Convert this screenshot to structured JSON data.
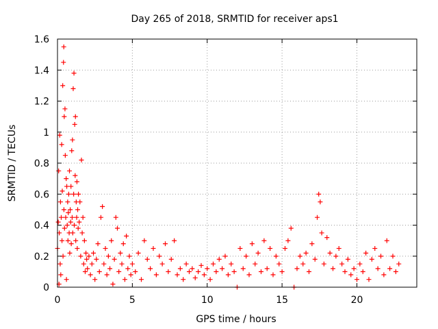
{
  "chart_data": {
    "type": "scatter",
    "title": "Day 265 of 2018, SRMTID for receiver aps1",
    "xlabel": "GPS time / hours",
    "ylabel": "SRMTID / TECUs",
    "xlim": [
      0,
      24
    ],
    "ylim": [
      0,
      1.6
    ],
    "x_ticks": [
      0,
      5,
      10,
      15,
      20
    ],
    "y_ticks": [
      0,
      0.2,
      0.4,
      0.6,
      0.8,
      1,
      1.2,
      1.4,
      1.6
    ],
    "x_tick_labels": [
      "0",
      "5",
      "10",
      "15",
      "20"
    ],
    "y_tick_labels": [
      "0",
      "0.2",
      "0.4",
      "0.6",
      "0.8",
      "1",
      "1.2",
      "1.4",
      "1.6"
    ],
    "grid": true,
    "marker": "+",
    "color": "#ff0000",
    "series": [
      {
        "name": "SRMTID",
        "points": [
          [
            0.0,
            0.25
          ],
          [
            0.05,
            0.42
          ],
          [
            0.08,
            0.75
          ],
          [
            0.1,
            0.02
          ],
          [
            0.12,
            0.35
          ],
          [
            0.15,
            0.98
          ],
          [
            0.18,
            0.15
          ],
          [
            0.2,
            0.55
          ],
          [
            0.22,
            0.08
          ],
          [
            0.25,
            0.45
          ],
          [
            0.28,
            0.92
          ],
          [
            0.3,
            0.3
          ],
          [
            0.32,
            0.62
          ],
          [
            0.35,
            1.3
          ],
          [
            0.37,
            0.2
          ],
          [
            0.4,
            1.45
          ],
          [
            0.42,
            1.55
          ],
          [
            0.43,
            0.5
          ],
          [
            0.45,
            1.1
          ],
          [
            0.47,
            0.38
          ],
          [
            0.5,
            1.15
          ],
          [
            0.52,
            0.85
          ],
          [
            0.55,
            0.45
          ],
          [
            0.58,
            0.7
          ],
          [
            0.6,
            0.05
          ],
          [
            0.62,
            0.65
          ],
          [
            0.65,
            0.4
          ],
          [
            0.68,
            0.55
          ],
          [
            0.7,
            0.3
          ],
          [
            0.72,
            0.48
          ],
          [
            0.75,
            0.6
          ],
          [
            0.78,
            0.35
          ],
          [
            0.8,
            0.75
          ],
          [
            0.82,
            0.22
          ],
          [
            0.85,
            0.5
          ],
          [
            0.88,
            0.42
          ],
          [
            0.9,
            0.65
          ],
          [
            0.92,
            0.28
          ],
          [
            0.95,
            0.88
          ],
          [
            0.98,
            0.45
          ],
          [
            1.0,
            0.95
          ],
          [
            1.02,
            0.35
          ],
          [
            1.05,
            1.28
          ],
          [
            1.08,
            0.6
          ],
          [
            1.1,
            1.38
          ],
          [
            1.12,
            0.4
          ],
          [
            1.15,
            1.05
          ],
          [
            1.18,
            0.72
          ],
          [
            1.2,
            1.1
          ],
          [
            1.22,
            0.3
          ],
          [
            1.25,
            0.55
          ],
          [
            1.28,
            0.45
          ],
          [
            1.3,
            0.68
          ],
          [
            1.32,
            0.25
          ],
          [
            1.35,
            0.5
          ],
          [
            1.38,
            0.38
          ],
          [
            1.4,
            0.6
          ],
          [
            1.45,
            0.42
          ],
          [
            1.5,
            0.55
          ],
          [
            1.55,
            0.2
          ],
          [
            1.6,
            0.82
          ],
          [
            1.65,
            0.35
          ],
          [
            1.7,
            0.45
          ],
          [
            1.75,
            0.15
          ],
          [
            1.8,
            0.3
          ],
          [
            1.85,
            0.1
          ],
          [
            1.9,
            0.22
          ],
          [
            1.95,
            0.18
          ],
          [
            2.0,
            0.12
          ],
          [
            2.1,
            0.2
          ],
          [
            2.2,
            0.08
          ],
          [
            2.3,
            0.15
          ],
          [
            2.4,
            0.22
          ],
          [
            2.5,
            0.05
          ],
          [
            2.6,
            0.18
          ],
          [
            2.7,
            0.28
          ],
          [
            2.8,
            0.1
          ],
          [
            2.9,
            0.45
          ],
          [
            3.0,
            0.52
          ],
          [
            3.1,
            0.15
          ],
          [
            3.2,
            0.25
          ],
          [
            3.3,
            0.08
          ],
          [
            3.4,
            0.2
          ],
          [
            3.5,
            0.12
          ],
          [
            3.6,
            0.3
          ],
          [
            3.7,
            0.02
          ],
          [
            3.8,
            0.18
          ],
          [
            3.9,
            0.45
          ],
          [
            4.0,
            0.38
          ],
          [
            4.1,
            0.1
          ],
          [
            4.2,
            0.22
          ],
          [
            4.3,
            0.15
          ],
          [
            4.4,
            0.28
          ],
          [
            4.5,
            0.05
          ],
          [
            4.6,
            0.33
          ],
          [
            4.7,
            0.12
          ],
          [
            4.8,
            0.2
          ],
          [
            4.9,
            0.08
          ],
          [
            5.0,
            0.15
          ],
          [
            5.2,
            0.1
          ],
          [
            5.4,
            0.22
          ],
          [
            5.6,
            0.05
          ],
          [
            5.8,
            0.3
          ],
          [
            6.0,
            0.18
          ],
          [
            6.2,
            0.12
          ],
          [
            6.4,
            0.25
          ],
          [
            6.6,
            0.08
          ],
          [
            6.8,
            0.2
          ],
          [
            7.0,
            0.15
          ],
          [
            7.2,
            0.28
          ],
          [
            7.4,
            0.1
          ],
          [
            7.6,
            0.18
          ],
          [
            7.8,
            0.3
          ],
          [
            8.0,
            0.08
          ],
          [
            8.2,
            0.12
          ],
          [
            8.4,
            0.05
          ],
          [
            8.6,
            0.15
          ],
          [
            8.8,
            0.1
          ],
          [
            9.0,
            0.12
          ],
          [
            9.2,
            0.06
          ],
          [
            9.4,
            0.1
          ],
          [
            9.6,
            0.14
          ],
          [
            9.8,
            0.08
          ],
          [
            10.0,
            0.12
          ],
          [
            10.2,
            0.05
          ],
          [
            10.4,
            0.15
          ],
          [
            10.6,
            0.1
          ],
          [
            10.8,
            0.18
          ],
          [
            11.0,
            0.12
          ],
          [
            11.2,
            0.2
          ],
          [
            11.4,
            0.08
          ],
          [
            11.6,
            0.15
          ],
          [
            11.8,
            0.1
          ],
          [
            12.0,
            0.0
          ],
          [
            12.2,
            0.25
          ],
          [
            12.4,
            0.12
          ],
          [
            12.6,
            0.2
          ],
          [
            12.8,
            0.08
          ],
          [
            13.0,
            0.28
          ],
          [
            13.2,
            0.15
          ],
          [
            13.4,
            0.22
          ],
          [
            13.6,
            0.1
          ],
          [
            13.8,
            0.3
          ],
          [
            14.0,
            0.12
          ],
          [
            14.2,
            0.25
          ],
          [
            14.4,
            0.08
          ],
          [
            14.6,
            0.2
          ],
          [
            14.8,
            0.15
          ],
          [
            15.0,
            0.1
          ],
          [
            15.2,
            0.25
          ],
          [
            15.4,
            0.3
          ],
          [
            15.6,
            0.38
          ],
          [
            15.8,
            0.0
          ],
          [
            16.0,
            0.12
          ],
          [
            16.2,
            0.2
          ],
          [
            16.4,
            0.15
          ],
          [
            16.6,
            0.22
          ],
          [
            16.8,
            0.1
          ],
          [
            17.0,
            0.28
          ],
          [
            17.2,
            0.18
          ],
          [
            17.35,
            0.45
          ],
          [
            17.45,
            0.6
          ],
          [
            17.55,
            0.55
          ],
          [
            17.65,
            0.35
          ],
          [
            17.8,
            0.15
          ],
          [
            18.0,
            0.32
          ],
          [
            18.2,
            0.22
          ],
          [
            18.4,
            0.12
          ],
          [
            18.6,
            0.2
          ],
          [
            18.8,
            0.25
          ],
          [
            19.0,
            0.15
          ],
          [
            19.2,
            0.1
          ],
          [
            19.4,
            0.18
          ],
          [
            19.6,
            0.08
          ],
          [
            19.8,
            0.12
          ],
          [
            20.0,
            0.05
          ],
          [
            20.2,
            0.15
          ],
          [
            20.4,
            0.1
          ],
          [
            20.6,
            0.22
          ],
          [
            20.8,
            0.05
          ],
          [
            21.0,
            0.18
          ],
          [
            21.2,
            0.25
          ],
          [
            21.4,
            0.12
          ],
          [
            21.6,
            0.2
          ],
          [
            21.8,
            0.08
          ],
          [
            22.0,
            0.3
          ],
          [
            22.2,
            0.12
          ],
          [
            22.4,
            0.2
          ],
          [
            22.6,
            0.1
          ],
          [
            22.8,
            0.15
          ]
        ]
      }
    ]
  }
}
